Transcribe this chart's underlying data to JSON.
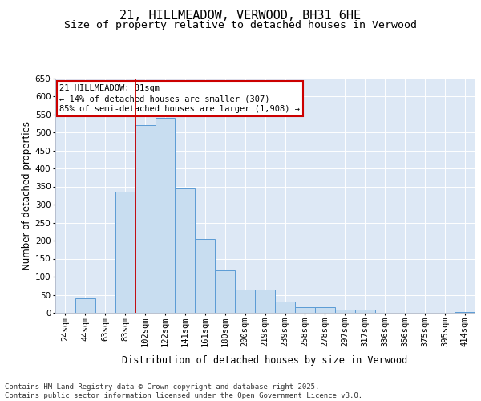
{
  "title1": "21, HILLMEADOW, VERWOOD, BH31 6HE",
  "title2": "Size of property relative to detached houses in Verwood",
  "xlabel": "Distribution of detached houses by size in Verwood",
  "ylabel": "Number of detached properties",
  "footnote": "Contains HM Land Registry data © Crown copyright and database right 2025.\nContains public sector information licensed under the Open Government Licence v3.0.",
  "categories": [
    "24sqm",
    "44sqm",
    "63sqm",
    "83sqm",
    "102sqm",
    "122sqm",
    "141sqm",
    "161sqm",
    "180sqm",
    "200sqm",
    "219sqm",
    "239sqm",
    "258sqm",
    "278sqm",
    "297sqm",
    "317sqm",
    "336sqm",
    "356sqm",
    "375sqm",
    "395sqm",
    "414sqm"
  ],
  "values": [
    0,
    40,
    0,
    335,
    520,
    540,
    345,
    205,
    118,
    65,
    65,
    32,
    15,
    15,
    10,
    10,
    0,
    0,
    0,
    0,
    2
  ],
  "bar_color": "#c8ddf0",
  "bar_edge_color": "#5b9bd5",
  "vline_color": "#cc0000",
  "vline_pos": 3.5,
  "annotation_text": "21 HILLMEADOW: 81sqm\n← 14% of detached houses are smaller (307)\n85% of semi-detached houses are larger (1,908) →",
  "annotation_box_color": "#cc0000",
  "ylim": [
    0,
    650
  ],
  "yticks": [
    0,
    50,
    100,
    150,
    200,
    250,
    300,
    350,
    400,
    450,
    500,
    550,
    600,
    650
  ],
  "plot_bg_color": "#dde8f5",
  "grid_color": "#ffffff",
  "title_fontsize": 11,
  "subtitle_fontsize": 9.5,
  "axis_label_fontsize": 8.5,
  "tick_fontsize": 7.5,
  "annotation_fontsize": 7.5,
  "footnote_fontsize": 6.5
}
